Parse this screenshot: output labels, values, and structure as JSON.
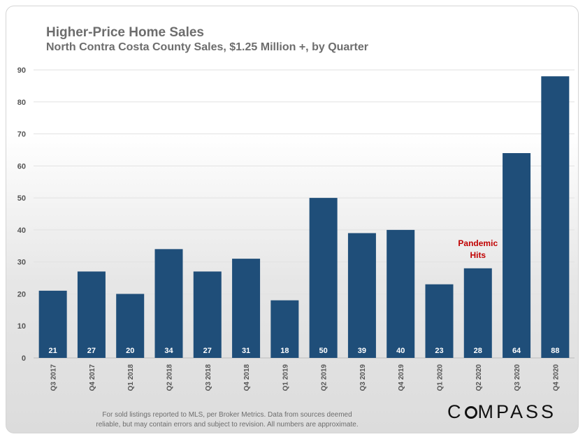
{
  "chart_data": {
    "type": "bar",
    "title": "Higher-Price Home Sales",
    "subtitle": "North Contra Costa County Sales, $1.25 Million +, by Quarter",
    "categories": [
      "Q3 2017",
      "Q4 2017",
      "Q1 2018",
      "Q2 2018",
      "Q3 2018",
      "Q4 2018",
      "Q1 2019",
      "Q2 2019",
      "Q3 2019",
      "Q4 2019",
      "Q1 2020",
      "Q2 2020",
      "Q3 2020",
      "Q4 2020"
    ],
    "values": [
      21,
      27,
      20,
      34,
      27,
      31,
      18,
      50,
      39,
      40,
      23,
      28,
      64,
      88
    ],
    "ylim": [
      0,
      90
    ],
    "yticks": [
      0,
      10,
      20,
      30,
      40,
      50,
      60,
      70,
      80,
      90
    ],
    "grid": true,
    "bar_color": "#1f4e79",
    "annotation": {
      "category": "Q2 2020",
      "lines": [
        "Pandemic",
        "Hits"
      ],
      "color": "#c00000"
    }
  },
  "footnote": {
    "line1": "For sold listings reported to MLS, per Broker Metrics. Data from sources deemed",
    "line2": "reliable, but may contain errors and subject to revision. All numbers are approximate."
  },
  "logo": {
    "before": "C",
    "after": "MPASS"
  }
}
